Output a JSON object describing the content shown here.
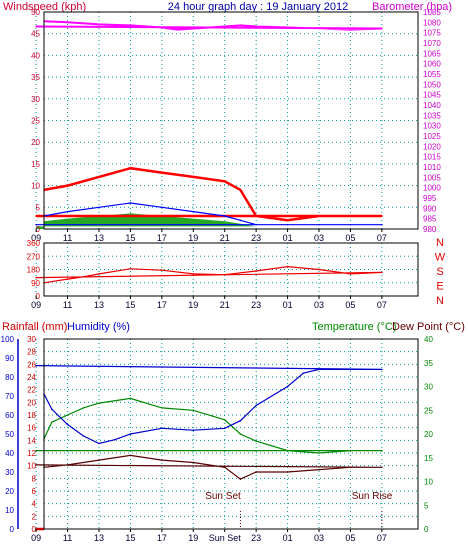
{
  "top_panel": {
    "left_axis_title": "Windspeed (kph)",
    "center_title": "24 hour graph day : 19 January 2012",
    "right_axis_title": "Barometer (hpa)"
  },
  "bottom_panel": {
    "rainfall_title": "Rainfall (mm)",
    "humidity_title": "Humidity (%)",
    "temperature_title": "Temperature (°C)",
    "dewpoint_title": "Dew Point (°C)",
    "sunset_label": "Sun Set",
    "sunrise_label": "Sun Rise"
  },
  "colors": {
    "wind_left_axis": "#cc0033",
    "barometer_axis": "#cc00cc",
    "barometer_line": "#ff00ff",
    "wind_gust": "#ff0000",
    "wind_avg": "#0000ff",
    "wind_gust_fill": "#009900",
    "direction_line": "#ee0000",
    "direction_labels": "#dd0000",
    "temperature": "#008800",
    "temperature_axis": "#008800",
    "humidity": "#0000cc",
    "humidity_axis": "#0000cc",
    "dewpoint": "#550000",
    "rainfall_axis": "#cc0000",
    "grid": "#009999"
  },
  "chart_data": [
    {
      "type": "line",
      "title": "24 hour graph day : 19 January 2012",
      "x_ticks": [
        "11",
        "13",
        "15",
        "17",
        "19",
        "21",
        "23",
        "01",
        "03",
        "05",
        "07",
        "09"
      ],
      "left_axis": {
        "label": "Windspeed (kph)",
        "ylim": [
          0,
          50
        ],
        "ticks": [
          0,
          5,
          10,
          15,
          20,
          25,
          30,
          35,
          40,
          45,
          50
        ]
      },
      "right_axis": {
        "label": "Barometer (hpa)",
        "ylim": [
          980,
          1085
        ],
        "ticks": [
          980,
          985,
          990,
          995,
          1000,
          1005,
          1010,
          1015,
          1020,
          1025,
          1030,
          1035,
          1040,
          1045,
          1050,
          1055,
          1060,
          1065,
          1070,
          1075,
          1080,
          1085
        ]
      },
      "series": [
        {
          "name": "Barometer",
          "axis": "right",
          "x": [
            9.5,
            11,
            13,
            15,
            17,
            18,
            19,
            21,
            22,
            23,
            1,
            3,
            5,
            7,
            9
          ],
          "values": [
            1080.5,
            1080,
            1079,
            1078.5,
            1077.5,
            1076.5,
            1077,
            1078,
            1078.5,
            1078,
            1077.5,
            1077,
            1076.5,
            1077,
            1078
          ]
        },
        {
          "name": "Wind gust",
          "axis": "left",
          "x": [
            9.5,
            11,
            13,
            15,
            17,
            19,
            21,
            22,
            23,
            1,
            3,
            5,
            7,
            9
          ],
          "values": [
            9,
            10,
            12,
            14,
            13,
            12,
            11,
            9,
            3,
            2,
            3,
            3,
            3,
            3
          ]
        },
        {
          "name": "Wind average",
          "axis": "left",
          "x": [
            9.5,
            11,
            13,
            15,
            17,
            19,
            21,
            22,
            23,
            1,
            3,
            5,
            7,
            9
          ],
          "values": [
            3,
            4,
            5,
            6,
            5,
            4,
            3,
            2,
            1,
            1,
            1,
            1,
            1,
            1
          ]
        }
      ]
    },
    {
      "type": "line",
      "x_ticks": [
        "11",
        "13",
        "15",
        "17",
        "19",
        "21",
        "23",
        "01",
        "03",
        "05",
        "07",
        "09"
      ],
      "left_axis": {
        "ylim": [
          0,
          360
        ],
        "ticks": [
          0,
          90,
          180,
          270,
          360
        ]
      },
      "right_axis_labels": [
        "N",
        "W",
        "S",
        "E",
        "N"
      ],
      "series": [
        {
          "name": "Wind direction",
          "x": [
            9.5,
            11,
            12,
            13,
            15,
            17,
            19,
            21,
            23,
            1,
            3,
            5,
            7,
            9
          ],
          "values": [
            90,
            115,
            130,
            150,
            185,
            175,
            150,
            145,
            170,
            200,
            180,
            150,
            160,
            125
          ]
        }
      ]
    },
    {
      "type": "line",
      "x_ticks": [
        "11",
        "13",
        "15",
        "17",
        "19",
        "Sun Set",
        "23",
        "01",
        "03",
        "05",
        "07",
        "09"
      ],
      "axes": {
        "rainfall": {
          "label": "Rainfall (mm)",
          "ylim": [
            0,
            30
          ],
          "ticks": [
            0,
            2,
            4,
            6,
            8,
            10,
            12,
            14,
            16,
            18,
            20,
            22,
            24,
            26,
            28,
            30
          ]
        },
        "humidity": {
          "label": "Humidity (%)",
          "ylim": [
            0,
            100
          ],
          "ticks": [
            0,
            10,
            20,
            30,
            40,
            50,
            60,
            70,
            80,
            90,
            100
          ]
        },
        "temperature": {
          "label": "Temperature (°C)Dew Point (°C)",
          "ylim": [
            0,
            40
          ],
          "ticks": [
            0,
            5,
            10,
            15,
            20,
            25,
            30,
            35,
            40
          ]
        }
      },
      "annotations": [
        {
          "text": "Sun Set",
          "x": 22
        },
        {
          "text": "Sun Rise",
          "x": 7
        }
      ],
      "series": [
        {
          "name": "Humidity",
          "axis": "humidity",
          "x": [
            9.5,
            10,
            11,
            12,
            13,
            14,
            15,
            17,
            19,
            21,
            22,
            23,
            1,
            2,
            3,
            5,
            7,
            9
          ],
          "values": [
            71,
            63,
            55,
            49,
            45,
            47,
            50,
            53,
            52,
            53,
            57,
            65,
            75,
            82,
            84,
            84,
            84,
            86
          ]
        },
        {
          "name": "Temperature",
          "axis": "temperature",
          "x": [
            9.5,
            10,
            11,
            12,
            13,
            15,
            17,
            19,
            21,
            22,
            23,
            1,
            3,
            5,
            7,
            9
          ],
          "values": [
            19,
            22.5,
            24,
            25.5,
            26.5,
            27.5,
            25.5,
            25,
            23,
            20,
            18.5,
            16.5,
            16,
            16.5,
            16.5,
            16.5
          ]
        },
        {
          "name": "Dew Point",
          "axis": "temperature",
          "x": [
            9.5,
            11,
            13,
            15,
            17,
            19,
            21,
            22,
            23,
            1,
            3,
            5,
            7,
            9
          ],
          "values": [
            13,
            13.5,
            14.5,
            15.5,
            14.5,
            14,
            13,
            10.5,
            12,
            12,
            12.5,
            13,
            13,
            13.5
          ]
        },
        {
          "name": "Rainfall",
          "axis": "rainfall",
          "x": [
            9.5,
            9
          ],
          "values": [
            0,
            0
          ]
        }
      ]
    }
  ]
}
